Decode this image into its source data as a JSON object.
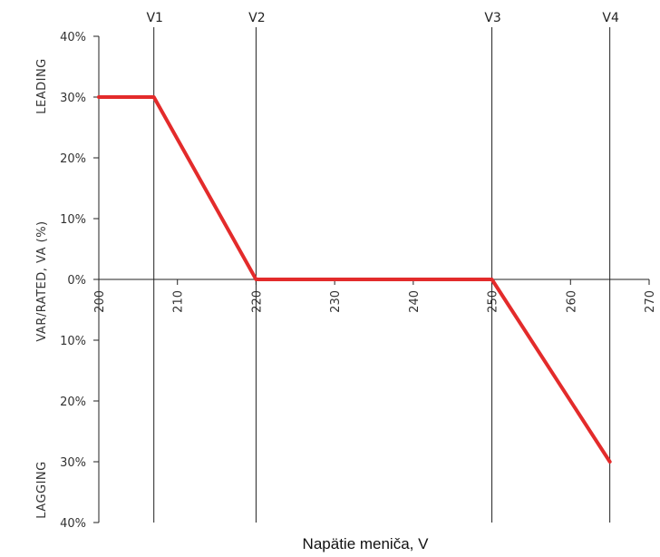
{
  "chart_data": {
    "type": "line",
    "title": "",
    "xlabel": "Napätie meniča, V",
    "ylabel": "VAR/RATED,  VA (%)",
    "ylabel_top": "LEADING",
    "ylabel_bottom": "LAGGING",
    "xlim": [
      200,
      270
    ],
    "ylim": [
      -40,
      40
    ],
    "x_ticks": [
      200,
      210,
      220,
      230,
      240,
      250,
      260,
      270
    ],
    "x_tick_labels": [
      "200",
      "210",
      "220",
      "230",
      "240",
      "250",
      "260",
      "270"
    ],
    "y_ticks": [
      40,
      30,
      20,
      10,
      0,
      -10,
      -20,
      -30,
      -40
    ],
    "y_tick_labels": [
      "40%",
      "30%",
      "20%",
      "10%",
      "0%",
      "10%",
      "20%",
      "30%",
      "40%"
    ],
    "vertical_markers": [
      {
        "label": "V1",
        "x": 207
      },
      {
        "label": "V2",
        "x": 220
      },
      {
        "label": "V3",
        "x": 250
      },
      {
        "label": "V4",
        "x": 265
      }
    ],
    "series": [
      {
        "color": "#e32b2b",
        "x": [
          200,
          207,
          220,
          250,
          265
        ],
        "y": [
          30,
          30,
          0,
          0,
          -30
        ]
      }
    ],
    "grid": false,
    "legend": "none"
  }
}
